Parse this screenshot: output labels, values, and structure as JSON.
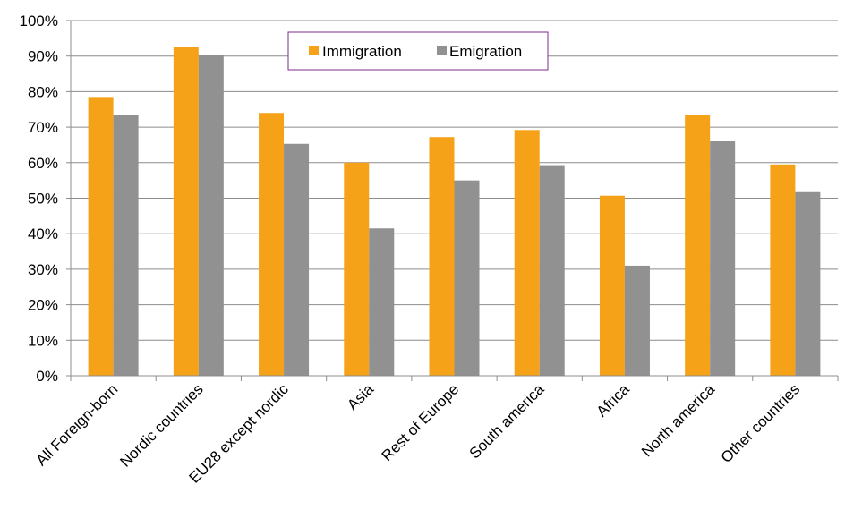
{
  "chart_data": {
    "type": "bar",
    "categories": [
      "All Foreign-born",
      "Nordic countries",
      "EU28 except nordic",
      "Asia",
      "Rest of Europe",
      "South america",
      "Africa",
      "North america",
      "Other countries"
    ],
    "series": [
      {
        "name": "Immigration",
        "color": "#F5A219",
        "values": [
          78.5,
          92.5,
          74,
          60,
          67.2,
          69.2,
          50.7,
          73.5,
          59.5
        ]
      },
      {
        "name": "Emigration",
        "color": "#919191",
        "values": [
          73.5,
          90.3,
          65.3,
          41.5,
          55,
          59.3,
          31,
          66,
          51.7
        ]
      }
    ],
    "ylim": [
      0,
      100
    ],
    "yticks": [
      "0%",
      "10%",
      "20%",
      "30%",
      "40%",
      "50%",
      "60%",
      "70%",
      "80%",
      "90%",
      "100%"
    ],
    "grid": true,
    "legend_position": "top-center",
    "title": "",
    "xlabel": "",
    "ylabel": ""
  }
}
